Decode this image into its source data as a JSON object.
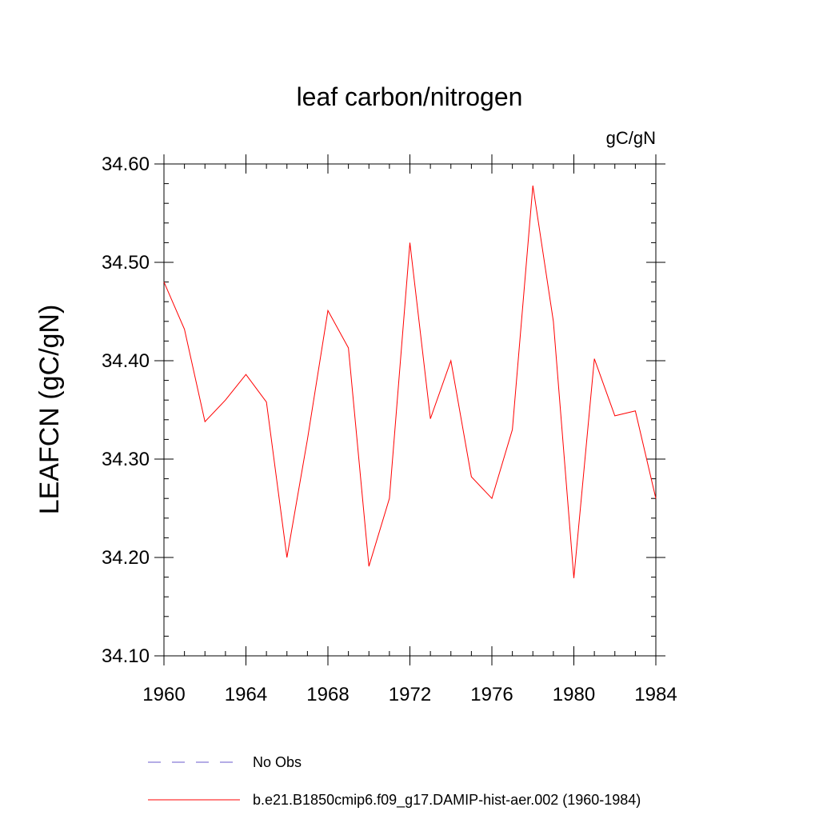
{
  "chart_data": {
    "type": "line",
    "title": "leaf carbon/nitrogen",
    "units_label": "gC/gN",
    "ylabel": "LEAFCN  (gC/gN)",
    "xlabel": "",
    "xlim": [
      1960,
      1984
    ],
    "ylim": [
      34.1,
      34.6
    ],
    "xticks": [
      1960,
      1964,
      1968,
      1972,
      1976,
      1980,
      1984
    ],
    "xtick_labels": [
      "1960",
      "1964",
      "1968",
      "1972",
      "1976",
      "1980",
      "1984"
    ],
    "yticks": [
      34.1,
      34.2,
      34.3,
      34.4,
      34.5,
      34.6
    ],
    "ytick_labels": [
      "34.10",
      "34.20",
      "34.30",
      "34.40",
      "34.50",
      "34.60"
    ],
    "grid": false,
    "legend_position": "bottom",
    "series": [
      {
        "name": "b.e21.B1850cmip6.f09_g17.DAMIP-hist-aer.002 (1960-1984)",
        "color": "#ff0000",
        "style": "solid",
        "x": [
          1960,
          1961,
          1962,
          1963,
          1964,
          1965,
          1966,
          1967,
          1968,
          1969,
          1970,
          1971,
          1972,
          1973,
          1974,
          1975,
          1976,
          1977,
          1978,
          1979,
          1980,
          1981,
          1982,
          1983,
          1984
        ],
        "y": [
          34.48,
          34.432,
          34.338,
          34.36,
          34.386,
          34.358,
          34.2,
          34.32,
          34.451,
          34.413,
          34.191,
          34.26,
          34.52,
          34.341,
          34.4,
          34.282,
          34.26,
          34.33,
          34.578,
          34.44,
          34.179,
          34.402,
          34.344,
          34.349,
          34.26
        ]
      }
    ],
    "legend": [
      {
        "label": "No Obs",
        "color": "#6a5acd",
        "style": "dashed"
      },
      {
        "label": "b.e21.B1850cmip6.f09_g17.DAMIP-hist-aer.002 (1960-1984)",
        "color": "#ff0000",
        "style": "solid"
      }
    ]
  }
}
